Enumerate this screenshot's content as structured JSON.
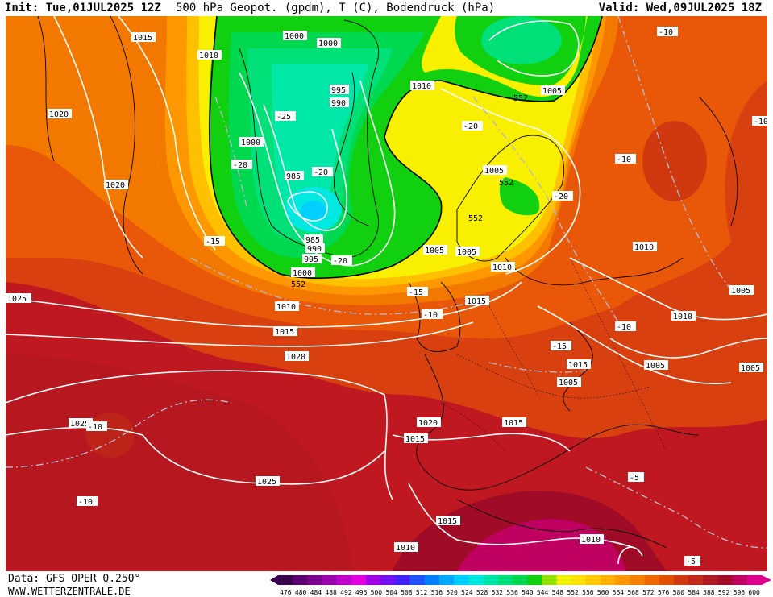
{
  "header": {
    "init": "Init: Tue,01JUL2025 12Z",
    "title": "500 hPa Geopot. (gpdm), T (C), Bodendruck (hPa)",
    "valid": "Valid: Wed,09JUL2025 18Z"
  },
  "footer": {
    "data_source": "Data: GFS OPER 0.250°",
    "website": "WWW.WETTERZENTRALE.DE"
  },
  "colorbar": {
    "ticks": [
      "476",
      "480",
      "484",
      "488",
      "492",
      "496",
      "500",
      "504",
      "508",
      "512",
      "516",
      "520",
      "524",
      "528",
      "532",
      "536",
      "540",
      "544",
      "548",
      "552",
      "556",
      "560",
      "564",
      "568",
      "572",
      "576",
      "580",
      "584",
      "588",
      "592",
      "596",
      "600"
    ],
    "colors": [
      "#3a0050",
      "#5a0072",
      "#7a008e",
      "#9a00aa",
      "#c000c8",
      "#e000e0",
      "#a000e8",
      "#7010f0",
      "#4020f8",
      "#2050ff",
      "#0080ff",
      "#00a8ff",
      "#00d0ff",
      "#00e8e0",
      "#00e8a8",
      "#00e078",
      "#00d850",
      "#10d010",
      "#90e000",
      "#f0f000",
      "#ffe000",
      "#ffc800",
      "#ffb000",
      "#ff9800",
      "#f88000",
      "#f06800",
      "#e05000",
      "#d03810",
      "#c02818",
      "#b01820",
      "#a00c28",
      "#c00060",
      "#e00090"
    ]
  },
  "isobar_labels": [
    "1000",
    "1000",
    "1015",
    "1010",
    "1020",
    "1020",
    "995",
    "990",
    "1000",
    "985",
    "985",
    "990",
    "995",
    "1000",
    "1010",
    "1005",
    "1005",
    "1005",
    "1005",
    "1010",
    "1025",
    "1010",
    "1015",
    "1015",
    "1020",
    "1010",
    "1005",
    "1010",
    "1015",
    "1005",
    "1005",
    "1020",
    "1015",
    "1015",
    "1025",
    "1025",
    "1015",
    "1010",
    "1010",
    "1005"
  ],
  "temp_labels": [
    "-10",
    "-10",
    "-25",
    "-20",
    "-20",
    "-20",
    "-20",
    "-15",
    "-20",
    "-15",
    "-10",
    "-10",
    "-15",
    "-10",
    "-10",
    "-5",
    "-5",
    "-10"
  ],
  "height_labels": [
    "552",
    "552",
    "552",
    "552"
  ]
}
